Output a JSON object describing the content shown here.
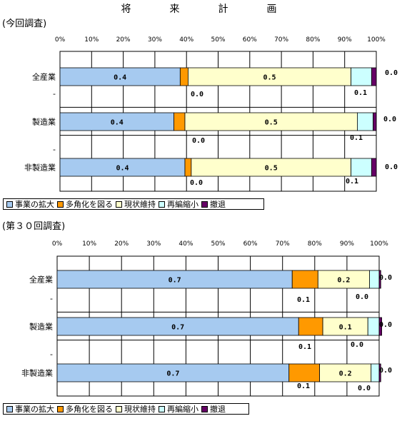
{
  "title": "将　来　計　画",
  "legend": [
    {
      "name": "事業の拡大",
      "color": "#a6caf0"
    },
    {
      "name": "多角化を図る",
      "color": "#ff9900"
    },
    {
      "name": "現状維持",
      "color": "#ffffcc"
    },
    {
      "name": "再編縮小",
      "color": "#ccffff"
    },
    {
      "name": "撤退",
      "color": "#660066"
    }
  ],
  "chart_data": [
    {
      "type": "bar",
      "stacked": true,
      "orientation": "horizontal",
      "subtitle": "(今回調査)",
      "x_ticks": [
        "0%",
        "10%",
        "20%",
        "30%",
        "40%",
        "50%",
        "60%",
        "70%",
        "80%",
        "90%",
        "100%"
      ],
      "xlim": [
        0,
        1
      ],
      "grid": true,
      "legend_position": "bottom",
      "categories": [
        "全産業",
        "",
        "製造業",
        "",
        "非製造業"
      ],
      "series": [
        {
          "name": "事業の拡大",
          "values": [
            0.38,
            null,
            0.36,
            null,
            0.395
          ]
        },
        {
          "name": "多角化を図る",
          "values": [
            0.025,
            null,
            0.035,
            null,
            0.02
          ]
        },
        {
          "name": "現状維持",
          "values": [
            0.515,
            null,
            0.545,
            null,
            0.505
          ]
        },
        {
          "name": "再編縮小",
          "values": [
            0.065,
            null,
            0.05,
            null,
            0.065
          ]
        },
        {
          "name": "撤退",
          "values": [
            0.015,
            null,
            0.01,
            null,
            0.015
          ]
        }
      ],
      "data_labels": [
        {
          "category": "全産業",
          "labels": [
            "0.4",
            "0.0",
            "0.5",
            "0.1",
            "0.0"
          ]
        },
        {
          "category": "製造業",
          "labels": [
            "0.4",
            "0.0",
            "0.5",
            "0.1",
            "0.0"
          ]
        },
        {
          "category": "非製造業",
          "labels": [
            "0.4",
            "0.0",
            "0.5",
            "0.1",
            "0.0"
          ]
        }
      ]
    },
    {
      "type": "bar",
      "stacked": true,
      "orientation": "horizontal",
      "subtitle": "(第３０回調査)",
      "x_ticks": [
        "0%",
        "10%",
        "20%",
        "30%",
        "40%",
        "50%",
        "60%",
        "70%",
        "80%",
        "90%",
        "100%"
      ],
      "xlim": [
        0,
        1
      ],
      "grid": true,
      "legend_position": "bottom",
      "categories": [
        "全産業",
        "",
        "製造業",
        "",
        "非製造業"
      ],
      "series": [
        {
          "name": "事業の拡大",
          "values": [
            0.73,
            null,
            0.75,
            null,
            0.72
          ]
        },
        {
          "name": "多角化を図る",
          "values": [
            0.08,
            null,
            0.075,
            null,
            0.095
          ]
        },
        {
          "name": "現状維持",
          "values": [
            0.16,
            null,
            0.14,
            null,
            0.16
          ]
        },
        {
          "name": "再編縮小",
          "values": [
            0.03,
            null,
            0.035,
            null,
            0.025
          ]
        },
        {
          "name": "撤退",
          "values": [
            0.005,
            null,
            0.008,
            null,
            0.005
          ]
        }
      ],
      "data_labels": [
        {
          "category": "全産業",
          "labels": [
            "0.7",
            "0.1",
            "0.2",
            "0.0",
            "0.0"
          ]
        },
        {
          "category": "製造業",
          "labels": [
            "0.7",
            "0.1",
            "0.1",
            "0.0",
            "0.0"
          ]
        },
        {
          "category": "非製造業",
          "labels": [
            "0.7",
            "0.1",
            "0.2",
            "0.0",
            "0.0"
          ]
        }
      ]
    }
  ]
}
